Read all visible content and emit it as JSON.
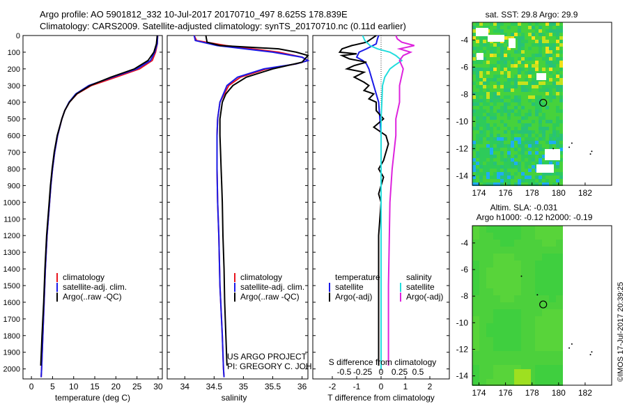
{
  "header": {
    "line1": "Argo profile: AO 5901812_332 10-Jul-2017 20170710_497 8.625S 178.839E",
    "line2": "Climatology: CARS2009. Satellite-adjusted climatology: synTS_20170710.nc (0.11d earlier)"
  },
  "depth_ticks": [
    0,
    100,
    200,
    300,
    400,
    500,
    600,
    700,
    800,
    900,
    1000,
    1100,
    1200,
    1300,
    1400,
    1500,
    1600,
    1700,
    1800,
    1900,
    2000
  ],
  "colors": {
    "climatology": "#e8141e",
    "satellite": "#1a1ae6",
    "argo": "#000000",
    "sat_salinity": "#22dddd",
    "argo_salinity": "#dd22dd"
  },
  "annotations": {
    "project": "US ARGO PROJECT",
    "pi": "PI: GREGORY C. JOHNSON",
    "timestamp": "©IMOS 17-Jul-2017 20:39:25"
  },
  "chart_data": [
    {
      "type": "line",
      "xlabel": "temperature (deg C)",
      "xlim": [
        -2,
        31
      ],
      "xticks": [
        0,
        5,
        10,
        15,
        20,
        25,
        30
      ],
      "ylim": [
        2060,
        0
      ],
      "legend": [
        "climatology",
        "satellite-adj. clim.",
        "Argo(..raw -QC)"
      ],
      "legend_loc": "lower-right",
      "series": [
        {
          "name": "climatology",
          "depth": [
            0,
            50,
            100,
            150,
            200,
            250,
            300,
            350,
            400,
            450,
            500,
            600,
            700,
            800,
            900,
            1000,
            1200,
            1400,
            1600,
            1800,
            2000,
            2050
          ],
          "values": [
            29.9,
            29.8,
            29.4,
            28.6,
            25.6,
            20.0,
            14.2,
            10.8,
            9.0,
            7.9,
            7.2,
            6.2,
            5.5,
            5.0,
            4.6,
            4.3,
            3.7,
            3.3,
            3.0,
            2.7,
            2.4,
            2.3
          ]
        },
        {
          "name": "satellite-adj. clim.",
          "depth": [
            0,
            50,
            100,
            150,
            200,
            250,
            300,
            350,
            400,
            450,
            500,
            600,
            700,
            800,
            900,
            1000,
            1200,
            1400,
            1600,
            1800,
            2000,
            2050
          ],
          "values": [
            29.9,
            29.8,
            29.2,
            28.2,
            25.0,
            19.2,
            13.6,
            10.5,
            8.9,
            7.9,
            7.2,
            6.2,
            5.5,
            5.0,
            4.6,
            4.3,
            3.7,
            3.3,
            3.0,
            2.7,
            2.4,
            2.3
          ]
        },
        {
          "name": "Argo(..raw -QC)",
          "depth": [
            0,
            50,
            100,
            150,
            200,
            250,
            300,
            350,
            400,
            450,
            500,
            600,
            700,
            800,
            900,
            1000,
            1200,
            1400,
            1600,
            1800,
            1980
          ],
          "values": [
            29.8,
            29.6,
            29.0,
            27.6,
            24.4,
            18.8,
            13.9,
            10.7,
            9.0,
            7.9,
            7.2,
            6.1,
            5.4,
            4.9,
            4.5,
            4.2,
            3.6,
            3.2,
            2.9,
            2.5,
            2.2
          ]
        }
      ]
    },
    {
      "type": "line",
      "xlabel": "salinity",
      "xlim": [
        33.7,
        36.1
      ],
      "xticks": [
        34,
        34.5,
        35,
        35.5,
        36
      ],
      "ylim": [
        2060,
        0
      ],
      "legend": [
        "climatology",
        "satellite-adj. clim.",
        "Argo(..raw -QC)"
      ],
      "legend_loc": "lower-right",
      "series": [
        {
          "name": "climatology",
          "depth": [
            0,
            30,
            60,
            100,
            130,
            150,
            170,
            200,
            250,
            300,
            400,
            500,
            600,
            800,
            1000,
            1200,
            1500,
            1800,
            2000,
            2050
          ],
          "values": [
            34.16,
            34.2,
            34.7,
            35.6,
            36.0,
            36.1,
            35.9,
            35.4,
            34.95,
            34.75,
            34.6,
            34.56,
            34.55,
            34.55,
            34.56,
            34.58,
            34.6,
            34.64,
            34.66,
            34.67
          ]
        },
        {
          "name": "satellite-adj. clim.",
          "depth": [
            0,
            30,
            60,
            100,
            130,
            150,
            170,
            200,
            250,
            300,
            400,
            500,
            600,
            800,
            1000,
            1200,
            1500,
            1800,
            2000,
            2050
          ],
          "values": [
            34.16,
            34.18,
            34.55,
            35.5,
            36.0,
            36.1,
            35.9,
            35.35,
            34.9,
            34.72,
            34.6,
            34.56,
            34.55,
            34.55,
            34.56,
            34.58,
            34.6,
            34.64,
            34.66,
            34.67
          ]
        },
        {
          "name": "Argo(..raw -QC)",
          "depth": [
            0,
            40,
            60,
            80,
            100,
            120,
            140,
            160,
            180,
            200,
            250,
            300,
            350,
            400,
            500,
            600,
            700,
            800,
            900,
            1000,
            1200,
            1400,
            1600,
            1800,
            1980
          ],
          "values": [
            34.36,
            34.38,
            34.6,
            35.6,
            35.9,
            36.1,
            36.05,
            36.0,
            35.75,
            35.5,
            35.05,
            34.82,
            34.7,
            34.64,
            34.6,
            34.6,
            34.61,
            34.62,
            34.63,
            34.64,
            34.65,
            34.67,
            34.68,
            34.7,
            34.72
          ]
        }
      ]
    },
    {
      "type": "line",
      "xlabel_bottom": "T difference from climatology",
      "xlabel_top": "S difference from climatology",
      "xlim_T": [
        -2.8,
        2.8
      ],
      "xticks_T": [
        -2,
        -1,
        0,
        1,
        2
      ],
      "xticks_S": [
        -0.5,
        -0.25,
        0,
        0.25,
        0.5
      ],
      "xtick_labels_S": [
        "-0.5",
        "-0.25",
        "0",
        "0.25",
        "0.5"
      ],
      "ylim": [
        2060,
        0
      ],
      "legend_titles": [
        "temperature",
        "salinity"
      ],
      "legend": [
        "satellite",
        "Argo(-adj)",
        "satellite",
        "Argo(-adj)"
      ],
      "series": [
        {
          "name": "satellite",
          "variable": "T",
          "depth": [
            0,
            20,
            50,
            80,
            100,
            130,
            150,
            170,
            200,
            250,
            300,
            350,
            400,
            500,
            600,
            800,
            1000,
            1200,
            1500,
            1800,
            2000
          ],
          "values": [
            -0.1,
            -0.15,
            -0.2,
            -0.6,
            -0.9,
            -1.0,
            -0.75,
            -0.6,
            -0.5,
            -0.4,
            -0.3,
            -0.2,
            -0.1,
            -0.05,
            0,
            0,
            0,
            0,
            0,
            0,
            0
          ]
        },
        {
          "name": "Argo(-adj)",
          "variable": "T",
          "depth": [
            0,
            20,
            40,
            60,
            80,
            100,
            110,
            120,
            140,
            160,
            180,
            200,
            220,
            250,
            280,
            300,
            330,
            350,
            380,
            400,
            450,
            500,
            550,
            600,
            650,
            700,
            750,
            800,
            850,
            900,
            950,
            1000,
            1200,
            1400,
            1600,
            1800,
            1980
          ],
          "values": [
            -0.2,
            -0.4,
            -0.6,
            -1.2,
            -1.6,
            -1.7,
            -1.0,
            -1.6,
            -1.3,
            -0.6,
            -1.1,
            -1.4,
            -0.7,
            -1.1,
            -0.7,
            -0.5,
            -0.7,
            -0.3,
            -0.5,
            -0.2,
            -0.2,
            0.1,
            -0.3,
            0.2,
            0.3,
            0.2,
            0.1,
            -0.1,
            0.1,
            0.0,
            -0.1,
            0.0,
            -0.1,
            -0.1,
            -0.1,
            -0.1,
            -0.1
          ]
        },
        {
          "name": "satellite",
          "variable": "S",
          "depth": [
            0,
            30,
            60,
            80,
            100,
            120,
            150,
            180,
            200,
            250,
            300,
            400,
            500,
            600,
            800,
            1000,
            1200,
            1500,
            1800,
            2000
          ],
          "values": [
            -0.25,
            -0.22,
            -0.15,
            -0.05,
            0.12,
            0.2,
            0.28,
            0.18,
            0.12,
            0.05,
            0.02,
            0.01,
            0,
            0,
            0,
            0,
            0,
            0,
            0,
            0
          ]
        },
        {
          "name": "Argo(-adj)",
          "variable": "S",
          "depth": [
            0,
            20,
            40,
            60,
            70,
            80,
            100,
            120,
            150,
            200,
            300,
            400,
            500,
            600,
            800,
            1000,
            1500,
            1980
          ],
          "values": [
            0.2,
            0.22,
            0.28,
            0.45,
            0.35,
            0.25,
            0.4,
            0.3,
            0.25,
            0.3,
            0.25,
            0.25,
            0.2,
            0.2,
            0.15,
            0.12,
            0.1,
            0.1
          ]
        }
      ]
    },
    {
      "type": "heatmap",
      "title": "sat. SST: 29.8 Argo: 29.9",
      "xticks": [
        174,
        176,
        178,
        180,
        182
      ],
      "yticks": [
        -4,
        -6,
        -8,
        -10,
        -12,
        -14
      ],
      "xlim": [
        173.5,
        184
      ],
      "ylim": [
        -14.7,
        -2.7
      ],
      "marker": {
        "lon": 178.839,
        "lat": -8.625
      }
    },
    {
      "type": "heatmap",
      "title_line1": "Altim. SLA: -0.031",
      "title_line2": "Argo h1000: -0.12 h2000: -0.19",
      "xticks": [
        174,
        176,
        178,
        180,
        182
      ],
      "yticks": [
        -4,
        -6,
        -8,
        -10,
        -12,
        -14
      ],
      "xlim": [
        173.5,
        184
      ],
      "ylim": [
        -14.7,
        -2.7
      ],
      "marker": {
        "lon": 178.839,
        "lat": -8.625
      }
    }
  ]
}
